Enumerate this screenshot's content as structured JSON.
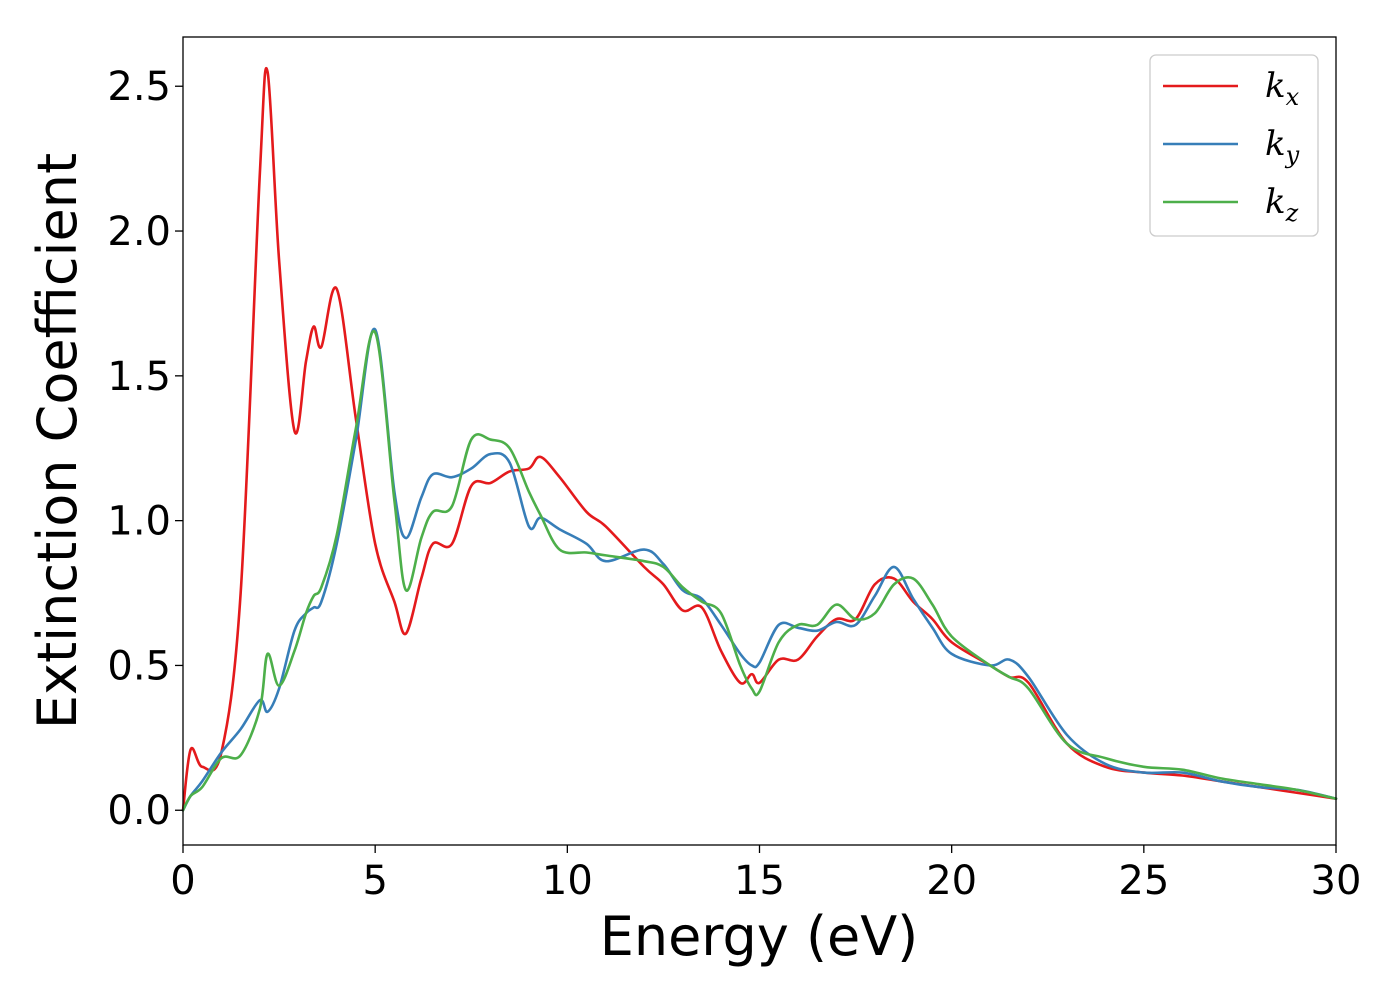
{
  "chart_data": {
    "type": "line",
    "title": "",
    "xlabel": "Energy (eV)",
    "ylabel": "Extinction Coefficient",
    "xlim": [
      0,
      30
    ],
    "ylim": [
      -0.12,
      2.67
    ],
    "xticks": [
      "0",
      "5",
      "10",
      "15",
      "20",
      "25",
      "30"
    ],
    "yticks": [
      "0.0",
      "0.5",
      "1.0",
      "1.5",
      "2.0",
      "2.5"
    ],
    "grid": false,
    "legend_position": "top-right",
    "x": [
      0,
      0.2,
      0.5,
      1.0,
      1.5,
      2.0,
      2.2,
      2.5,
      2.9,
      3.2,
      3.4,
      3.6,
      4.0,
      4.5,
      5.0,
      5.5,
      5.8,
      6.2,
      6.5,
      7.0,
      7.5,
      8.0,
      8.5,
      9.0,
      9.3,
      9.8,
      10.5,
      11.0,
      12.0,
      12.5,
      13.0,
      13.5,
      14.0,
      14.5,
      14.8,
      15.0,
      15.5,
      16.0,
      16.5,
      17.0,
      17.5,
      18.0,
      18.5,
      19.0,
      19.5,
      20.0,
      21.0,
      21.5,
      22.0,
      23.0,
      24.0,
      25.0,
      26.0,
      27.0,
      28.0,
      29.0,
      30.0
    ],
    "series": [
      {
        "name": "k",
        "subscript": "x",
        "color": "#e41a1c",
        "values": [
          0.0,
          0.21,
          0.15,
          0.2,
          0.75,
          2.2,
          2.55,
          1.9,
          1.31,
          1.55,
          1.67,
          1.6,
          1.8,
          1.35,
          0.92,
          0.72,
          0.61,
          0.8,
          0.92,
          0.92,
          1.12,
          1.13,
          1.17,
          1.18,
          1.22,
          1.15,
          1.03,
          0.98,
          0.84,
          0.78,
          0.69,
          0.7,
          0.55,
          0.44,
          0.47,
          0.44,
          0.52,
          0.52,
          0.6,
          0.66,
          0.66,
          0.78,
          0.8,
          0.72,
          0.66,
          0.58,
          0.5,
          0.46,
          0.44,
          0.23,
          0.15,
          0.13,
          0.12,
          0.1,
          0.08,
          0.06,
          0.04
        ]
      },
      {
        "name": "k",
        "subscript": "y",
        "color": "#377eb8",
        "values": [
          0.0,
          0.05,
          0.1,
          0.2,
          0.28,
          0.38,
          0.34,
          0.42,
          0.62,
          0.68,
          0.7,
          0.72,
          0.92,
          1.28,
          1.66,
          1.1,
          0.94,
          1.08,
          1.16,
          1.15,
          1.18,
          1.23,
          1.2,
          0.98,
          1.01,
          0.97,
          0.92,
          0.86,
          0.9,
          0.85,
          0.76,
          0.73,
          0.64,
          0.54,
          0.5,
          0.51,
          0.64,
          0.63,
          0.62,
          0.65,
          0.64,
          0.74,
          0.84,
          0.73,
          0.63,
          0.54,
          0.5,
          0.52,
          0.46,
          0.26,
          0.16,
          0.13,
          0.13,
          0.1,
          0.08,
          0.07,
          0.04
        ]
      },
      {
        "name": "k",
        "subscript": "z",
        "color": "#4daf4a",
        "values": [
          0.0,
          0.05,
          0.08,
          0.18,
          0.19,
          0.35,
          0.54,
          0.43,
          0.55,
          0.68,
          0.74,
          0.77,
          0.95,
          1.32,
          1.65,
          1.07,
          0.76,
          0.94,
          1.03,
          1.05,
          1.28,
          1.28,
          1.25,
          1.1,
          1.02,
          0.9,
          0.89,
          0.88,
          0.86,
          0.84,
          0.77,
          0.72,
          0.68,
          0.5,
          0.42,
          0.41,
          0.58,
          0.64,
          0.64,
          0.71,
          0.66,
          0.68,
          0.78,
          0.8,
          0.71,
          0.6,
          0.5,
          0.46,
          0.42,
          0.23,
          0.18,
          0.15,
          0.14,
          0.11,
          0.09,
          0.07,
          0.04
        ]
      }
    ]
  }
}
